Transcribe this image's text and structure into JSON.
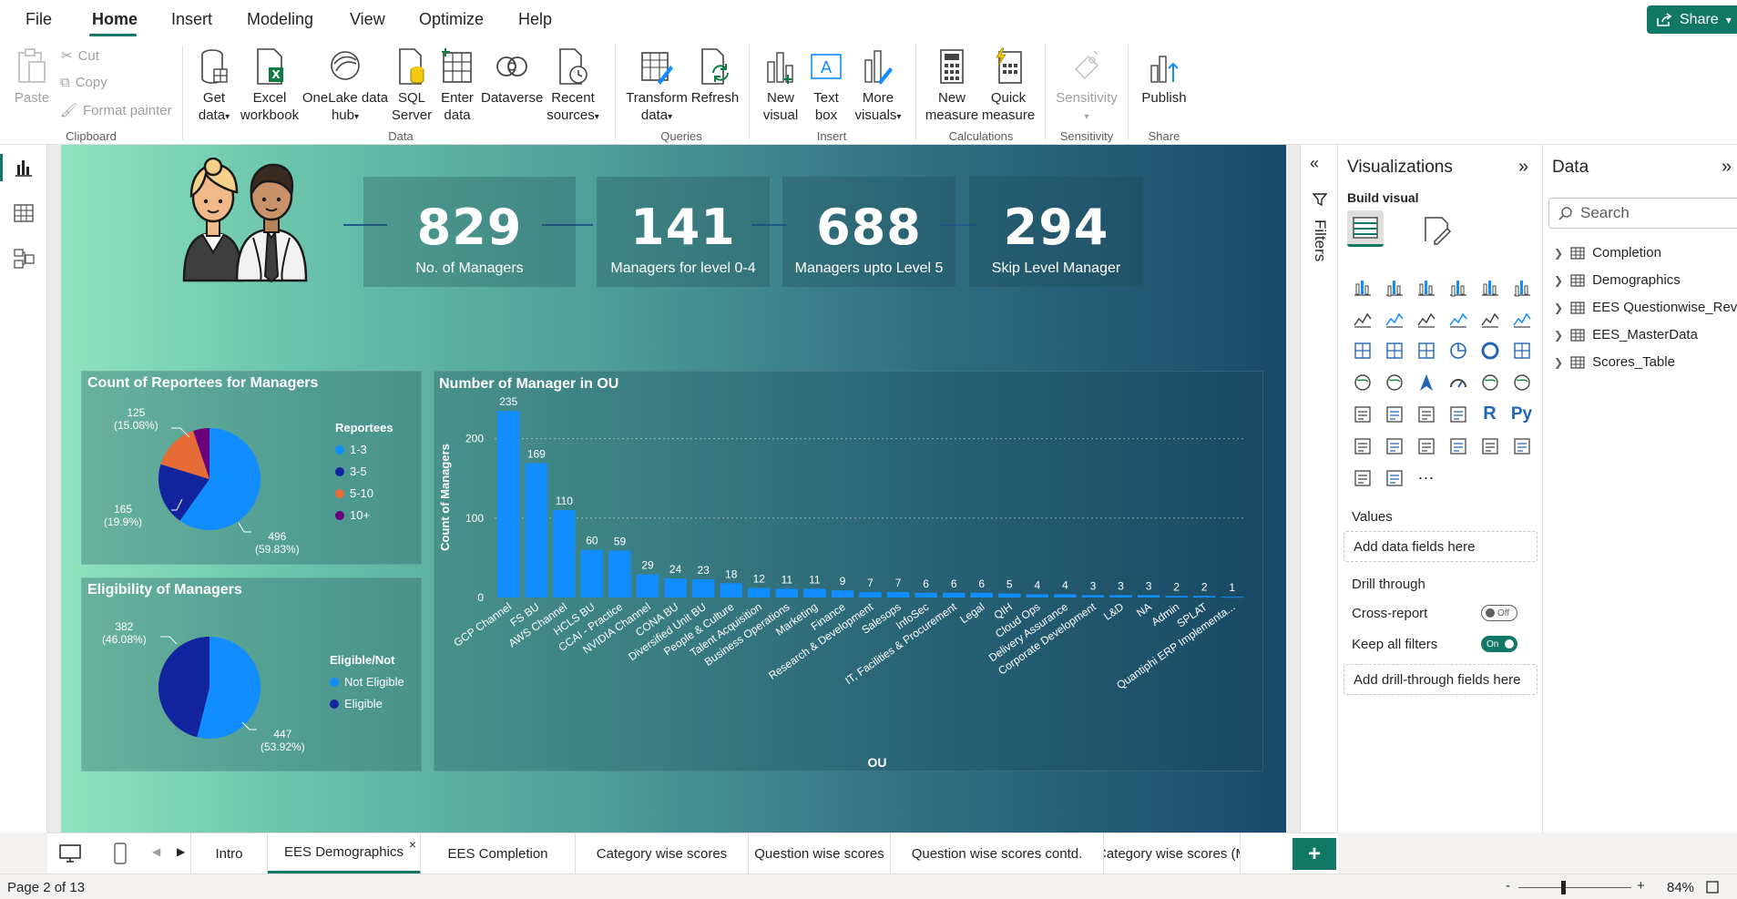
{
  "menu": {
    "items": [
      "File",
      "Home",
      "Insert",
      "Modeling",
      "View",
      "Optimize",
      "Help"
    ],
    "active": "Home",
    "share_label": "Share"
  },
  "ribbon": {
    "clipboard": {
      "paste": "Paste",
      "cut": "Cut",
      "copy": "Copy",
      "format_painter": "Format painter",
      "group": "Clipboard"
    },
    "data": {
      "get_data": [
        "Get",
        "data"
      ],
      "excel": [
        "Excel",
        "workbook"
      ],
      "onelake": [
        "OneLake data",
        "hub"
      ],
      "sql": [
        "SQL",
        "Server"
      ],
      "enter": [
        "Enter",
        "data"
      ],
      "dataverse": [
        "Dataverse",
        ""
      ],
      "recent": [
        "Recent",
        "sources"
      ],
      "group": "Data"
    },
    "queries": {
      "transform": [
        "Transform",
        "data"
      ],
      "refresh": [
        "Refresh",
        ""
      ],
      "group": "Queries"
    },
    "insert": {
      "new_visual": [
        "New",
        "visual"
      ],
      "text_box": [
        "Text",
        "box"
      ],
      "more_visuals": [
        "More",
        "visuals"
      ],
      "group": "Insert"
    },
    "calculations": {
      "new_measure": [
        "New",
        "measure"
      ],
      "quick_measure": [
        "Quick",
        "measure"
      ],
      "group": "Calculations"
    },
    "sensitivity": {
      "label": "Sensitivity",
      "group": "Sensitivity"
    },
    "share": {
      "publish": "Publish",
      "group": "Share"
    }
  },
  "report": {
    "kpis": [
      {
        "value": "829",
        "label": "No. of Managers"
      },
      {
        "value": "141",
        "label": "Managers for level 0-4"
      },
      {
        "value": "688",
        "label": "Managers upto Level 5"
      },
      {
        "value": "294",
        "label": "Skip Level Manager"
      }
    ],
    "pie1": {
      "title": "Count of Reportees for Managers",
      "legend_title": "Reportees",
      "labels": [
        {
          "value": "496",
          "pct": "(59.83%)"
        },
        {
          "value": "165",
          "pct": "(19.9%)"
        },
        {
          "value": "125",
          "pct": "(15.08%)"
        }
      ]
    },
    "pie2": {
      "title": "Eligibility of Managers",
      "legend_title": "Eligible/Not",
      "labels": [
        {
          "value": "447",
          "pct": "(53.92%)"
        },
        {
          "value": "382",
          "pct": "(46.08%)"
        }
      ]
    }
  },
  "chart_data": [
    {
      "type": "pie",
      "title": "Count of Reportees for Managers",
      "legend_title": "Reportees",
      "categories": [
        "1-3",
        "3-5",
        "5-10",
        "10+"
      ],
      "values": [
        496,
        165,
        125,
        43
      ],
      "colors": [
        "#118dff",
        "#12239e",
        "#e66c37",
        "#6b007b"
      ]
    },
    {
      "type": "pie",
      "title": "Eligibility of Managers",
      "legend_title": "Eligible/Not",
      "categories": [
        "Not Eligible",
        "Eligible"
      ],
      "values": [
        447,
        382
      ],
      "colors": [
        "#118dff",
        "#12239e"
      ]
    },
    {
      "type": "bar",
      "title": "Number of Manager in OU",
      "xlabel": "OU",
      "ylabel": "Count of Managers",
      "ylim": [
        0,
        250
      ],
      "yticks": [
        0,
        100,
        200
      ],
      "categories": [
        "GCP Channel",
        "FS BU",
        "AWS Channel",
        "HCLS BU",
        "CCAI - Practice",
        "NVIDIA Channel",
        "CONA BU",
        "Diversified Unit BU",
        "People & Culture",
        "Talent Acquisition",
        "Business Operations",
        "Marketing",
        "Finance",
        "Research & Development",
        "Salesops",
        "InfoSec",
        "IT, Facilities & Procurement",
        "Legal",
        "QIH",
        "Cloud Ops",
        "Delivery Assurance",
        "Corporate Development",
        "L&D",
        "NA",
        "Admin",
        "SPLAT",
        "Quantiphi ERP Implementa..."
      ],
      "values": [
        235,
        169,
        110,
        60,
        59,
        29,
        24,
        23,
        18,
        12,
        11,
        11,
        9,
        7,
        7,
        6,
        6,
        6,
        5,
        4,
        4,
        3,
        3,
        3,
        2,
        2,
        1
      ],
      "color": "#118dff"
    }
  ],
  "filters": {
    "label": "Filters"
  },
  "visualizations": {
    "title": "Visualizations",
    "build_visual": "Build visual",
    "values_label": "Values",
    "values_placeholder": "Add data fields here",
    "drill_through": "Drill through",
    "cross_report": "Cross-report",
    "cross_report_state": "Off",
    "keep_all_filters": "Keep all filters",
    "keep_all_filters_state": "On",
    "drill_placeholder": "Add drill-through fields here",
    "more": "···"
  },
  "data_pane": {
    "title": "Data",
    "search_placeholder": "Search",
    "tables": [
      "Completion",
      "Demographics",
      "EES Questionwise_Revis...",
      "EES_MasterData",
      "Scores_Table"
    ]
  },
  "tabs": [
    "Intro",
    "EES Demographics",
    "EES Completion",
    "Category wise scores",
    "Question wise scores",
    "Question wise scores contd.",
    "Category wise scores (M"
  ],
  "active_tab": "EES Demographics",
  "status": {
    "page": "Page 2 of 13",
    "zoom": "84%",
    "minus": "-",
    "plus": "+"
  }
}
